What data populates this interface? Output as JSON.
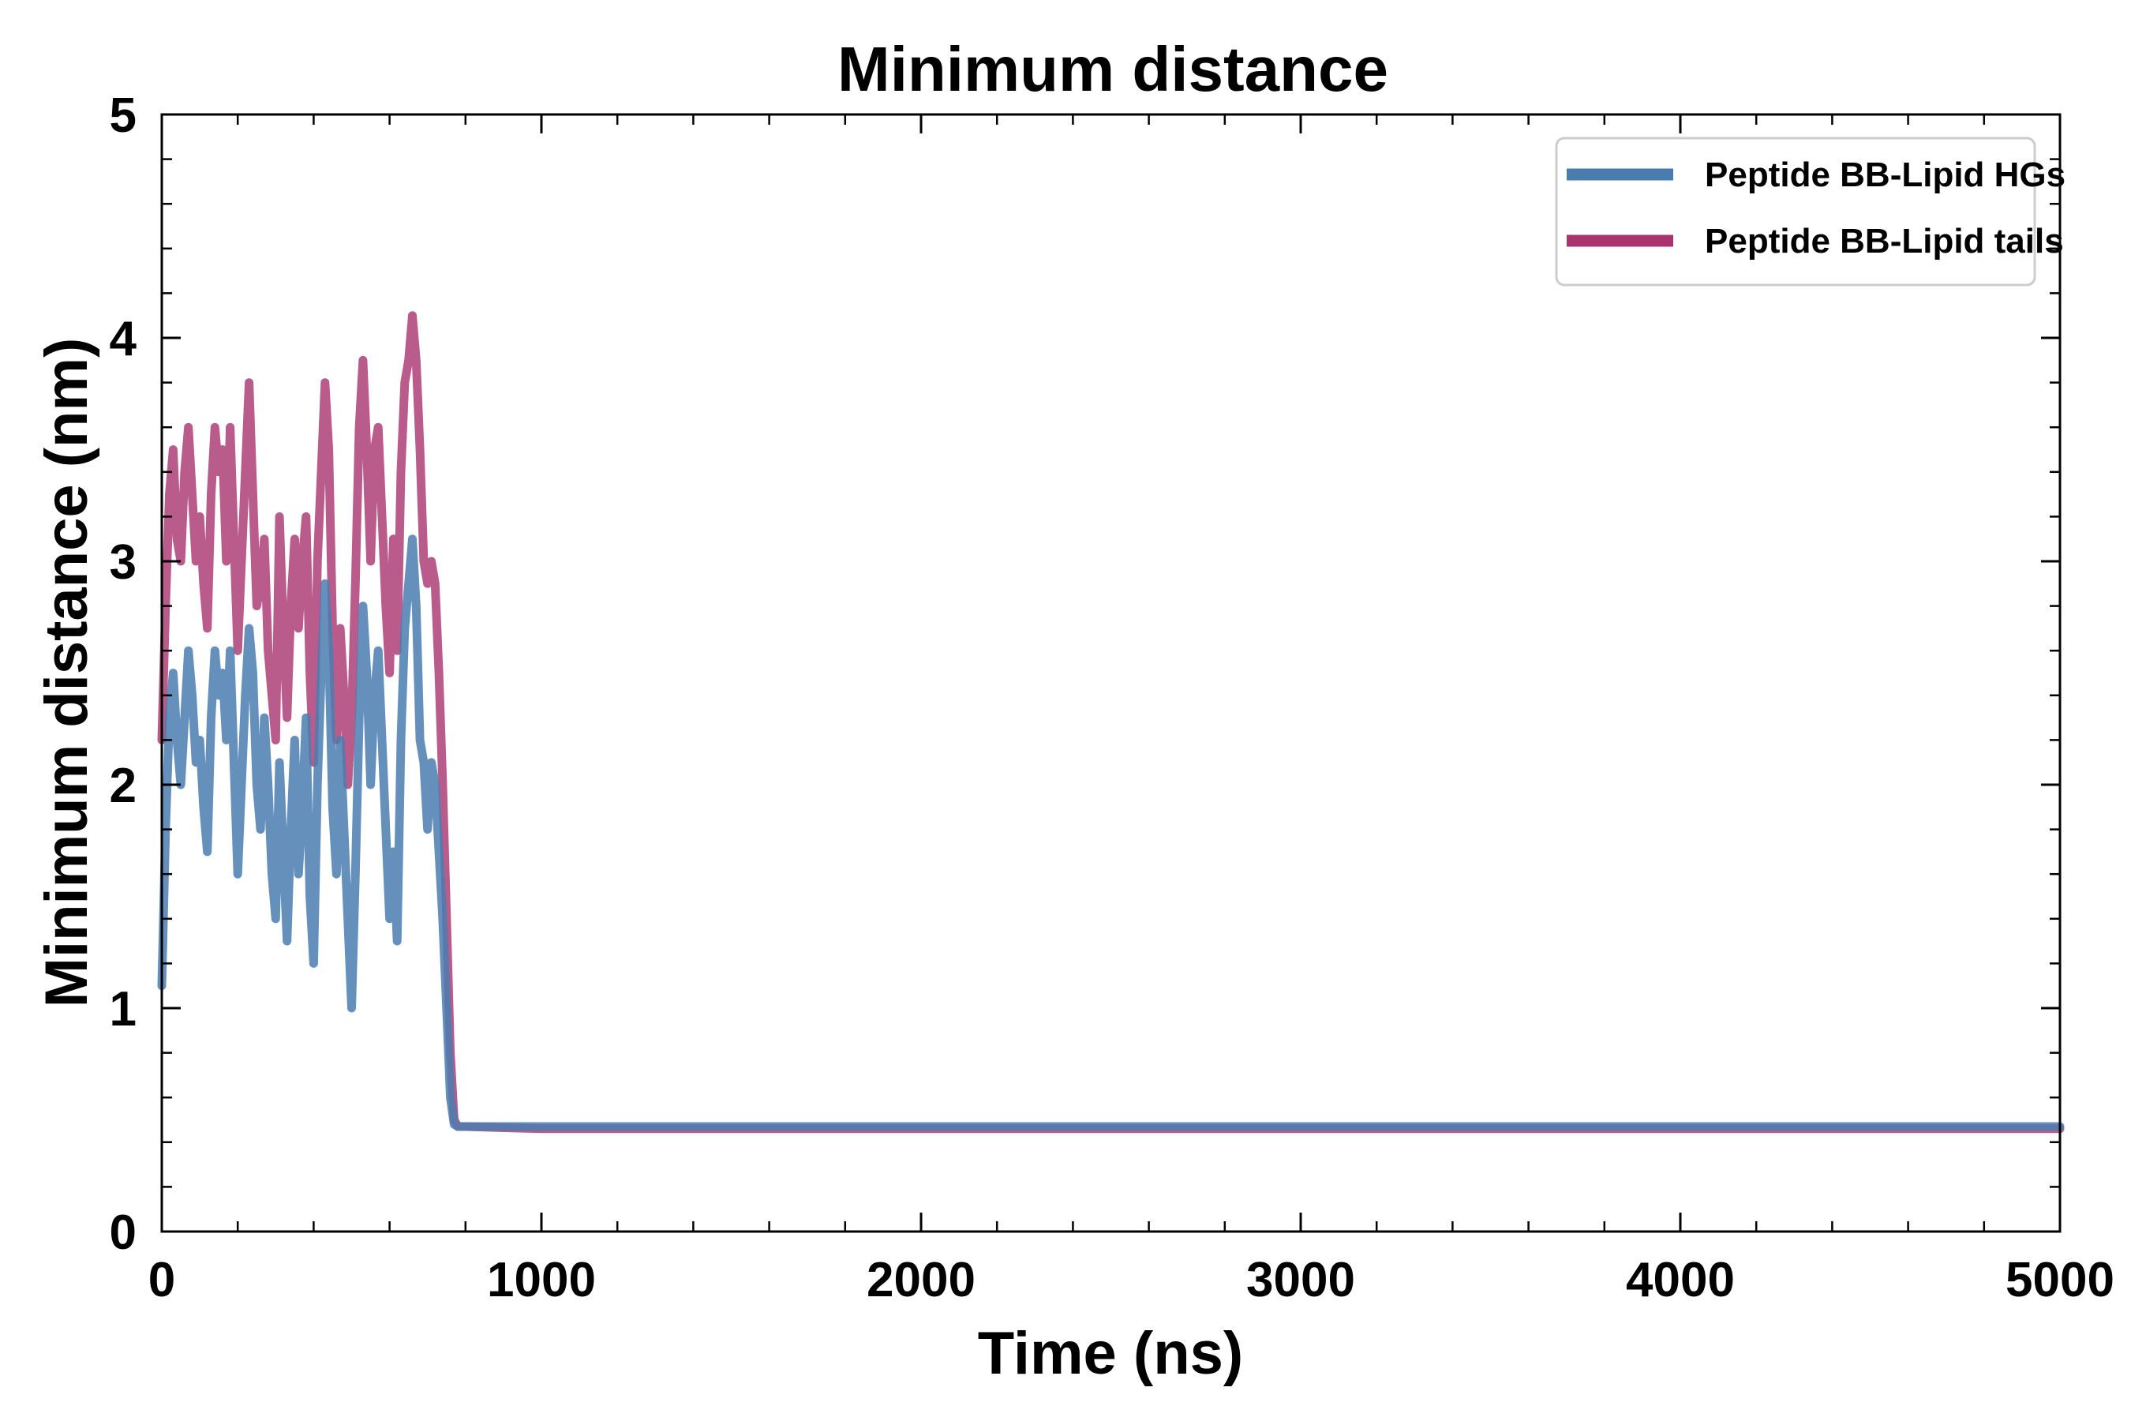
{
  "chart_data": {
    "type": "line",
    "title": "Minimum distance",
    "xlabel": "Time (ns)",
    "ylabel": "Minimum distance (nm)",
    "xlim": [
      0,
      5000
    ],
    "ylim": [
      0,
      5
    ],
    "x_ticks": [
      0,
      1000,
      2000,
      3000,
      4000,
      5000
    ],
    "x_tick_labels": [
      "0",
      "1000",
      "2000",
      "3000",
      "4000",
      "5000"
    ],
    "y_ticks": [
      0,
      1,
      2,
      3,
      4,
      5
    ],
    "y_tick_labels": [
      "0",
      "1",
      "2",
      "3",
      "4",
      "5"
    ],
    "grid": false,
    "legend_position": "top-right",
    "series": [
      {
        "name": "Peptide BB-Lipid HGs",
        "color": "#4a7cb0",
        "x": [
          0,
          10,
          20,
          30,
          40,
          50,
          60,
          70,
          80,
          90,
          100,
          110,
          120,
          130,
          140,
          150,
          160,
          170,
          180,
          190,
          200,
          210,
          220,
          230,
          240,
          250,
          260,
          270,
          280,
          290,
          300,
          310,
          320,
          330,
          340,
          350,
          360,
          370,
          380,
          390,
          400,
          410,
          420,
          430,
          440,
          450,
          460,
          470,
          480,
          490,
          500,
          510,
          520,
          530,
          540,
          550,
          560,
          570,
          580,
          590,
          600,
          610,
          620,
          630,
          640,
          650,
          660,
          670,
          680,
          690,
          700,
          710,
          720,
          730,
          740,
          750,
          760,
          770,
          780,
          790,
          800,
          1000,
          1500,
          2000,
          2500,
          3000,
          3500,
          4000,
          4500,
          5000
        ],
        "values": [
          1.1,
          1.8,
          2.3,
          2.5,
          2.2,
          2.0,
          2.3,
          2.6,
          2.4,
          2.1,
          2.2,
          1.9,
          1.7,
          2.3,
          2.6,
          2.4,
          2.5,
          2.2,
          2.6,
          2.1,
          1.6,
          2.0,
          2.4,
          2.7,
          2.5,
          2.0,
          1.8,
          2.3,
          2.0,
          1.6,
          1.4,
          2.1,
          1.7,
          1.3,
          1.8,
          2.2,
          1.6,
          1.9,
          2.3,
          1.5,
          1.2,
          2.0,
          2.5,
          2.9,
          2.6,
          1.9,
          1.6,
          2.2,
          1.8,
          1.4,
          1.0,
          1.6,
          2.3,
          2.8,
          2.5,
          2.0,
          2.4,
          2.6,
          2.2,
          1.8,
          1.4,
          1.7,
          1.3,
          2.2,
          2.7,
          2.9,
          3.1,
          2.8,
          2.2,
          2.1,
          1.8,
          2.1,
          2.0,
          1.7,
          1.4,
          1.0,
          0.6,
          0.48,
          0.47,
          0.47,
          0.47,
          0.47,
          0.47,
          0.47,
          0.47,
          0.47,
          0.47,
          0.47,
          0.47,
          0.47
        ]
      },
      {
        "name": "Peptide BB-Lipid tails",
        "color": "#a8336f",
        "x": [
          0,
          10,
          20,
          30,
          40,
          50,
          60,
          70,
          80,
          90,
          100,
          110,
          120,
          130,
          140,
          150,
          160,
          170,
          180,
          190,
          200,
          210,
          220,
          230,
          240,
          250,
          260,
          270,
          280,
          290,
          300,
          310,
          320,
          330,
          340,
          350,
          360,
          370,
          380,
          390,
          400,
          410,
          420,
          430,
          440,
          450,
          460,
          470,
          480,
          490,
          500,
          510,
          520,
          530,
          540,
          550,
          560,
          570,
          580,
          590,
          600,
          610,
          620,
          630,
          640,
          650,
          660,
          670,
          680,
          690,
          700,
          710,
          720,
          730,
          740,
          750,
          760,
          770,
          780,
          790,
          800,
          1000,
          1500,
          2000,
          2500,
          3000,
          3500,
          4000,
          4500,
          5000
        ],
        "values": [
          2.2,
          2.8,
          3.3,
          3.5,
          3.1,
          3.0,
          3.4,
          3.6,
          3.3,
          3.0,
          3.2,
          2.9,
          2.7,
          3.3,
          3.6,
          3.4,
          3.5,
          3.0,
          3.6,
          3.1,
          2.6,
          3.0,
          3.4,
          3.8,
          3.3,
          2.8,
          2.9,
          3.1,
          2.6,
          2.4,
          2.2,
          3.2,
          2.7,
          2.3,
          2.8,
          3.1,
          2.7,
          3.0,
          3.2,
          2.5,
          2.1,
          3.0,
          3.4,
          3.8,
          3.5,
          2.7,
          2.2,
          2.7,
          2.4,
          2.0,
          2.3,
          2.9,
          3.6,
          3.9,
          3.5,
          3.0,
          3.5,
          3.6,
          3.2,
          2.8,
          2.5,
          3.1,
          2.6,
          3.4,
          3.8,
          3.9,
          4.1,
          3.9,
          3.5,
          3.0,
          2.9,
          3.0,
          2.9,
          2.5,
          2.0,
          1.4,
          0.8,
          0.5,
          0.47,
          0.47,
          0.47,
          0.46,
          0.46,
          0.46,
          0.46,
          0.46,
          0.46,
          0.46,
          0.46,
          0.46
        ]
      }
    ]
  }
}
